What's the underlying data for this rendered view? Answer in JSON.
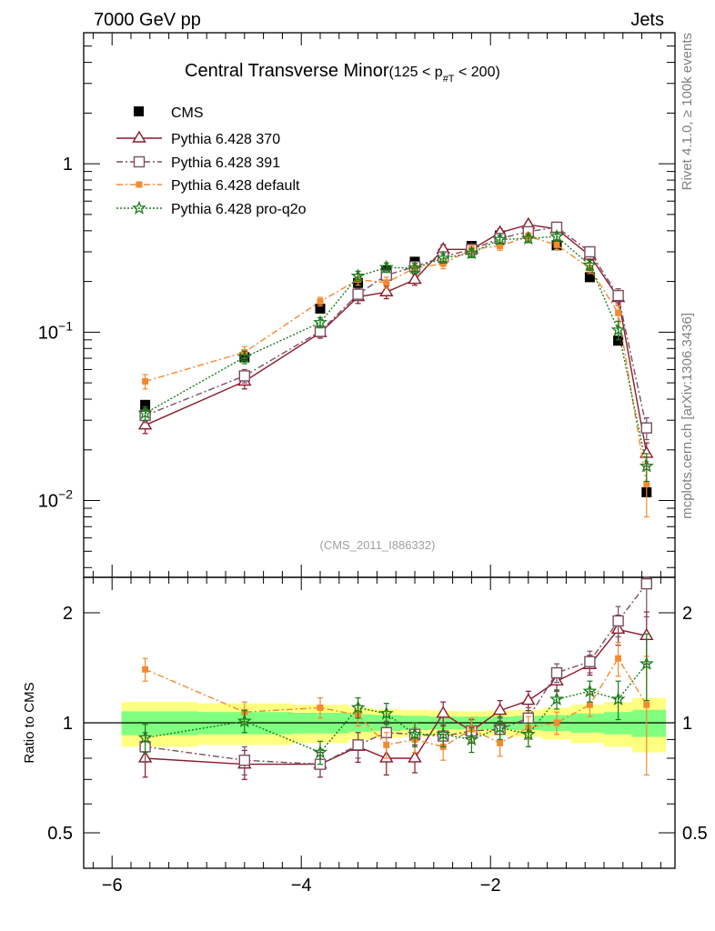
{
  "header": {
    "energy_label": "7000 GeV pp",
    "process_label": "Jets"
  },
  "side_text": {
    "rivet_label": "Rivet 4.1.0, ≥ 100k events",
    "mcplots_label": "mcplots.cern.ch [arXiv:1306.3436]"
  },
  "chart_data": [
    {
      "type": "scatter",
      "title_main": "Central Transverse Minor",
      "title_cut": "(125 < p",
      "title_sub": "#T",
      "title_cut_end": " < 200)",
      "analysis_label": "(CMS_2011_I886332)",
      "yscale": "log",
      "xlim": [
        -6.3,
        -0.05
      ],
      "ylim": [
        0.0035,
        6.0
      ],
      "yticks": [
        {
          "value": 0.01,
          "base": "10",
          "exp": "−2"
        },
        {
          "value": 0.1,
          "base": "10",
          "exp": "−1"
        },
        {
          "value": 1,
          "base": "1",
          "exp": ""
        }
      ],
      "legend_position": "top-left",
      "x": [
        -5.65,
        -4.6,
        -3.8,
        -3.4,
        -3.1,
        -2.8,
        -2.5,
        -2.2,
        -1.9,
        -1.6,
        -1.3,
        -0.95,
        -0.65,
        -0.35
      ],
      "series": [
        {
          "name": "CMS",
          "role": "data",
          "color": "#000000",
          "marker": "square",
          "values": [
            0.037,
            0.071,
            0.138,
            0.196,
            0.232,
            0.262,
            0.292,
            0.325,
            0.375,
            0.385,
            0.328,
            0.212,
            0.089,
            0.0112
          ]
        },
        {
          "name": "Pythia 6.428 370",
          "color": "#8b1a2b",
          "marker": "triangle-open",
          "line": "solid",
          "values": [
            0.028,
            0.051,
            0.099,
            0.162,
            0.173,
            0.205,
            0.31,
            0.31,
            0.39,
            0.435,
            0.41,
            0.285,
            0.16,
            0.019
          ],
          "errors": [
            0.003,
            0.005,
            0.007,
            0.014,
            0.015,
            0.015,
            0.02,
            0.018,
            0.02,
            0.02,
            0.02,
            0.017,
            0.015,
            0.003
          ]
        },
        {
          "name": "Pythia 6.428 391",
          "color": "#7a4e62",
          "marker": "square-open",
          "line": "dashdot",
          "values": [
            0.032,
            0.055,
            0.101,
            0.168,
            0.218,
            0.245,
            0.28,
            0.31,
            0.36,
            0.395,
            0.42,
            0.3,
            0.165,
            0.027
          ],
          "errors": [
            0.003,
            0.005,
            0.007,
            0.014,
            0.016,
            0.016,
            0.018,
            0.018,
            0.02,
            0.02,
            0.02,
            0.018,
            0.016,
            0.004
          ]
        },
        {
          "name": "Pythia 6.428 default",
          "color": "#f28a30",
          "marker": "square-filled-small",
          "line": "dashdot",
          "values": [
            0.051,
            0.076,
            0.152,
            0.205,
            0.197,
            0.24,
            0.255,
            0.31,
            0.325,
            0.37,
            0.33,
            0.24,
            0.13,
            0.0125
          ],
          "errors": [
            0.005,
            0.006,
            0.009,
            0.015,
            0.015,
            0.016,
            0.017,
            0.018,
            0.019,
            0.02,
            0.02,
            0.017,
            0.014,
            0.0045
          ]
        },
        {
          "name": "Pythia 6.428 pro-q2o",
          "color": "#1a7a1a",
          "marker": "star",
          "line": "dotted",
          "values": [
            0.033,
            0.071,
            0.114,
            0.215,
            0.242,
            0.24,
            0.275,
            0.295,
            0.355,
            0.36,
            0.37,
            0.25,
            0.103,
            0.016
          ],
          "errors": [
            0.003,
            0.006,
            0.008,
            0.015,
            0.016,
            0.016,
            0.018,
            0.018,
            0.02,
            0.02,
            0.02,
            0.017,
            0.013,
            0.003
          ]
        }
      ]
    },
    {
      "type": "scatter",
      "ylabel": "Ratio to CMS",
      "yscale": "log",
      "xlim": [
        -6.3,
        -0.05
      ],
      "ylim": [
        0.4,
        2.5
      ],
      "yticks": [
        0.5,
        1,
        2
      ],
      "ytick_labels": [
        "0.5",
        "1",
        "2"
      ],
      "xticks": [
        -6,
        -4,
        -2
      ],
      "xtick_labels": [
        "−6",
        "−4",
        "−2"
      ],
      "bands": {
        "yellow": {
          "color": "#ffff80",
          "x_edges": [
            -5.9,
            -5.1,
            -4.1,
            -3.5,
            -3.25,
            -2.95,
            -2.65,
            -2.35,
            -2.05,
            -1.75,
            -1.45,
            -1.15,
            -0.8,
            -0.5,
            -0.15
          ],
          "half_width": [
            0.14,
            0.13,
            0.12,
            0.1,
            0.09,
            0.085,
            0.08,
            0.075,
            0.08,
            0.085,
            0.1,
            0.12,
            0.14,
            0.17
          ]
        },
        "green": {
          "color": "#80ff80",
          "x_edges": [
            -5.9,
            -5.1,
            -4.1,
            -3.5,
            -3.25,
            -2.95,
            -2.65,
            -2.35,
            -2.05,
            -1.75,
            -1.45,
            -1.15,
            -0.8,
            -0.5,
            -0.15
          ],
          "half_width": [
            0.075,
            0.07,
            0.065,
            0.055,
            0.05,
            0.045,
            0.04,
            0.04,
            0.04,
            0.045,
            0.05,
            0.06,
            0.07,
            0.085
          ]
        }
      },
      "series": [
        {
          "name": "Pythia 6.428 370",
          "values": [
            0.8,
            0.77,
            0.77,
            0.86,
            0.8,
            0.8,
            1.06,
            0.95,
            1.08,
            1.15,
            1.3,
            1.44,
            1.8,
            1.73
          ],
          "errors": [
            0.09,
            0.07,
            0.06,
            0.08,
            0.08,
            0.07,
            0.08,
            0.07,
            0.07,
            0.07,
            0.08,
            0.09,
            0.17,
            0.28
          ]
        },
        {
          "name": "Pythia 6.428 391",
          "values": [
            0.86,
            0.79,
            0.77,
            0.87,
            0.94,
            0.93,
            0.92,
            0.95,
            0.96,
            1.03,
            1.37,
            1.47,
            1.9,
            2.4
          ],
          "errors": [
            0.08,
            0.07,
            0.06,
            0.07,
            0.07,
            0.07,
            0.07,
            0.07,
            0.07,
            0.07,
            0.08,
            0.1,
            0.18,
            0.45
          ]
        },
        {
          "name": "Pythia 6.428 default",
          "values": [
            1.4,
            1.07,
            1.1,
            1.05,
            0.87,
            0.9,
            0.86,
            0.96,
            0.88,
            0.97,
            1.0,
            1.12,
            1.5,
            1.12
          ],
          "errors": [
            0.1,
            0.07,
            0.07,
            0.07,
            0.07,
            0.07,
            0.07,
            0.07,
            0.07,
            0.07,
            0.07,
            0.08,
            0.16,
            0.4
          ]
        },
        {
          "name": "Pythia 6.428 pro-q2o",
          "values": [
            0.91,
            1.01,
            0.83,
            1.1,
            1.06,
            0.93,
            0.93,
            0.9,
            0.97,
            0.93,
            1.16,
            1.22,
            1.16,
            1.45
          ],
          "errors": [
            0.08,
            0.07,
            0.06,
            0.07,
            0.07,
            0.07,
            0.07,
            0.07,
            0.07,
            0.07,
            0.07,
            0.08,
            0.14,
            0.3
          ]
        }
      ]
    }
  ]
}
